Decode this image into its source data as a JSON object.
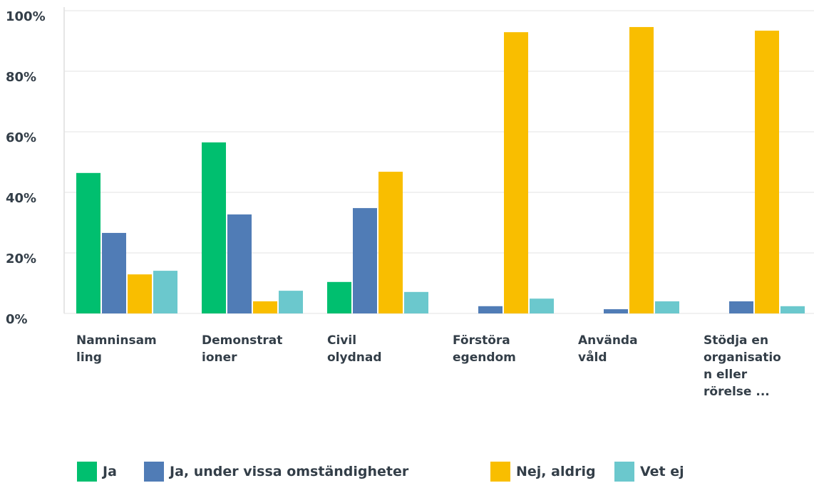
{
  "chart_data": {
    "type": "bar",
    "categories": [
      "Namninsamling",
      "Demonstrationer",
      "Civil olydnad",
      "Förstöra egendom",
      "Använda våld",
      "Stödja en organisation eller rörelse ..."
    ],
    "series": [
      {
        "name": "Ja",
        "color": "#00bf6f",
        "values": [
          46.4,
          56.5,
          10.4,
          0,
          0,
          0
        ]
      },
      {
        "name": "Ja, under vissa omständigheter",
        "color": "#507cb6",
        "values": [
          26.6,
          32.7,
          34.8,
          2.4,
          1.4,
          4
        ]
      },
      {
        "name": "Nej, aldrig",
        "color": "#f9be00",
        "values": [
          12.9,
          4,
          46.8,
          92.9,
          94.6,
          93.4
        ]
      },
      {
        "name": "Vet ej",
        "color": "#6bc8cd",
        "values": [
          14.1,
          7.5,
          7.1,
          4.9,
          4,
          2.4
        ]
      }
    ],
    "ylim": [
      0,
      100
    ],
    "yticks": [
      {
        "value": 0,
        "label": "0%"
      },
      {
        "value": 20,
        "label": "20%"
      },
      {
        "value": 40,
        "label": "40%"
      },
      {
        "value": 60,
        "label": "60%"
      },
      {
        "value": 80,
        "label": "80%"
      },
      {
        "value": 100,
        "label": "100%"
      }
    ],
    "grid": true
  }
}
